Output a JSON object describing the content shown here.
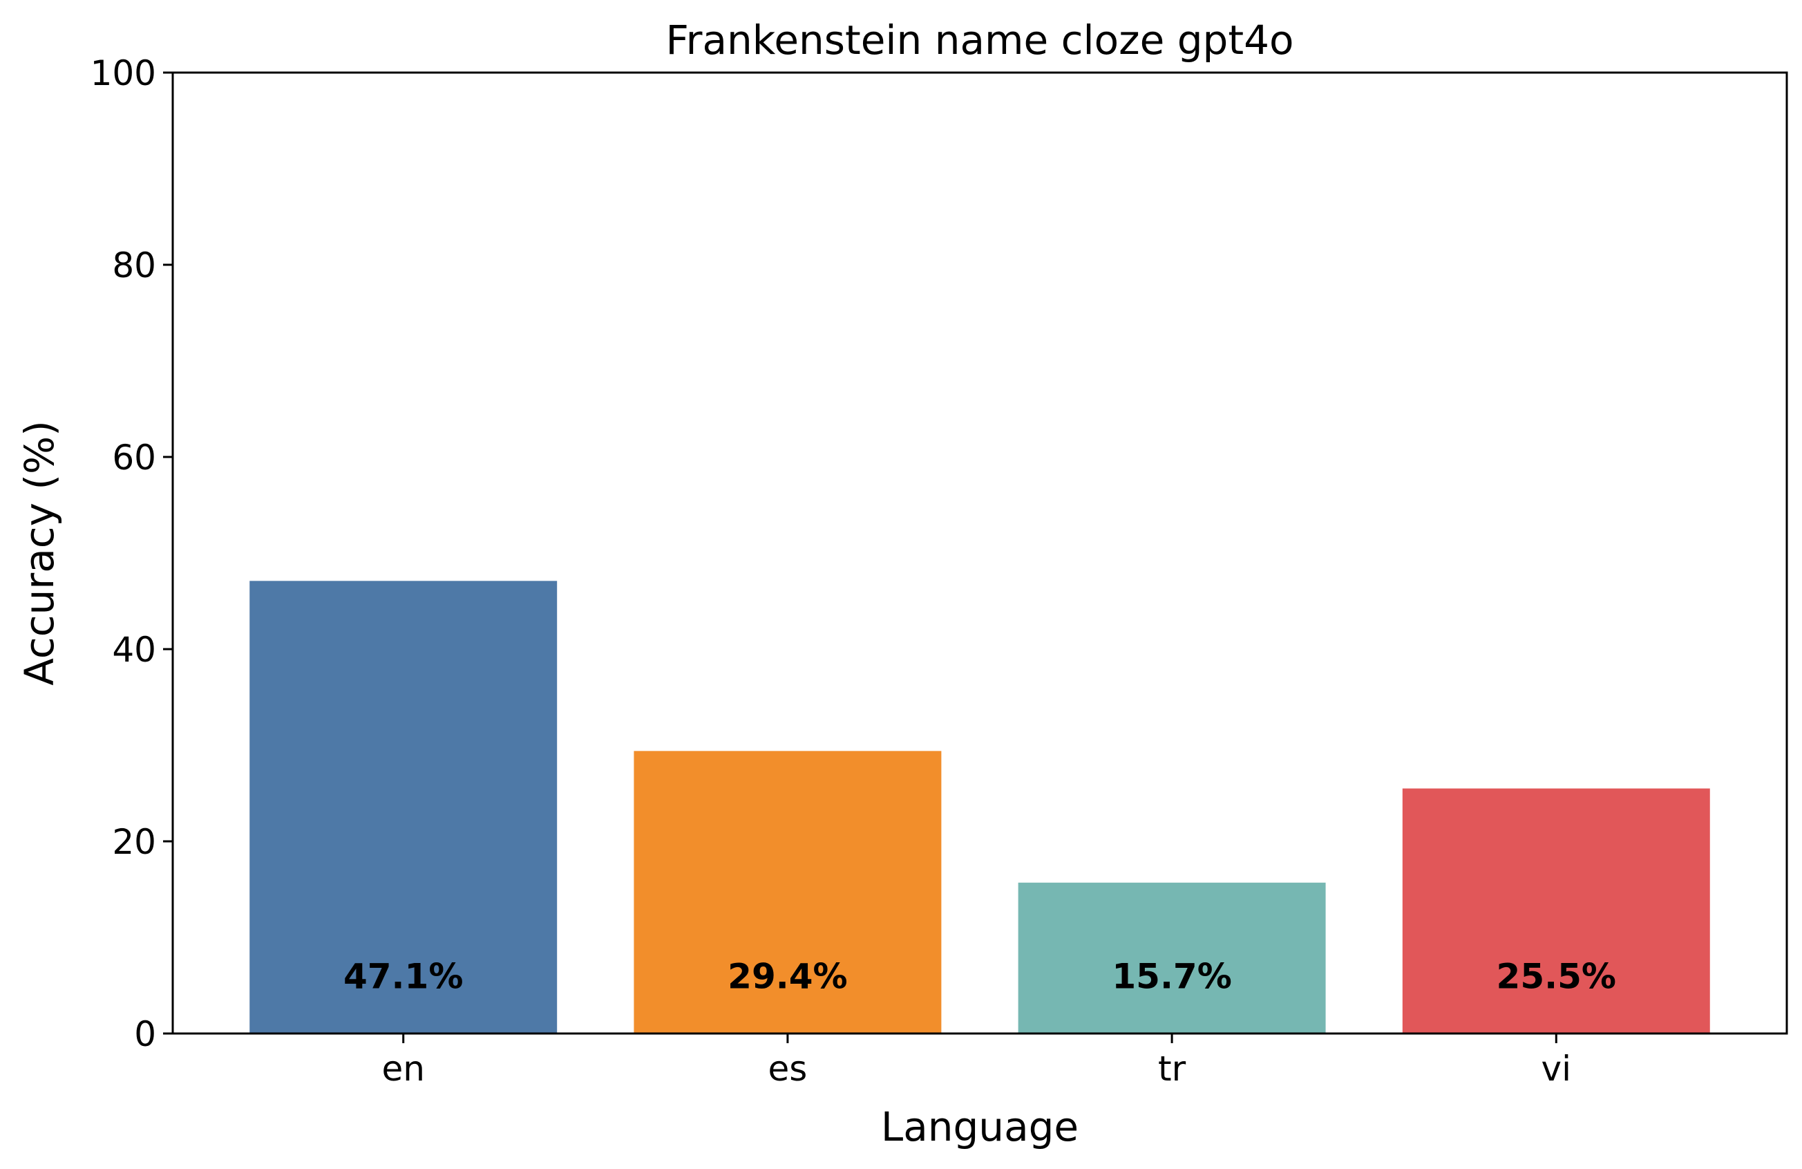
{
  "chart_data": {
    "type": "bar",
    "title": "Frankenstein name cloze gpt4o",
    "xlabel": "Language",
    "ylabel": "Accuracy (%)",
    "categories": [
      "en",
      "es",
      "tr",
      "vi"
    ],
    "values": [
      47.1,
      29.4,
      15.7,
      25.5
    ],
    "value_labels": [
      "47.1%",
      "29.4%",
      "15.7%",
      "25.5%"
    ],
    "colors": [
      "#4e79a7",
      "#f28e2b",
      "#76b7b2",
      "#e15759"
    ],
    "ylim": [
      0,
      100
    ],
    "yticks": [
      0,
      20,
      40,
      60,
      80,
      100
    ],
    "grid": false,
    "legend": "none"
  }
}
